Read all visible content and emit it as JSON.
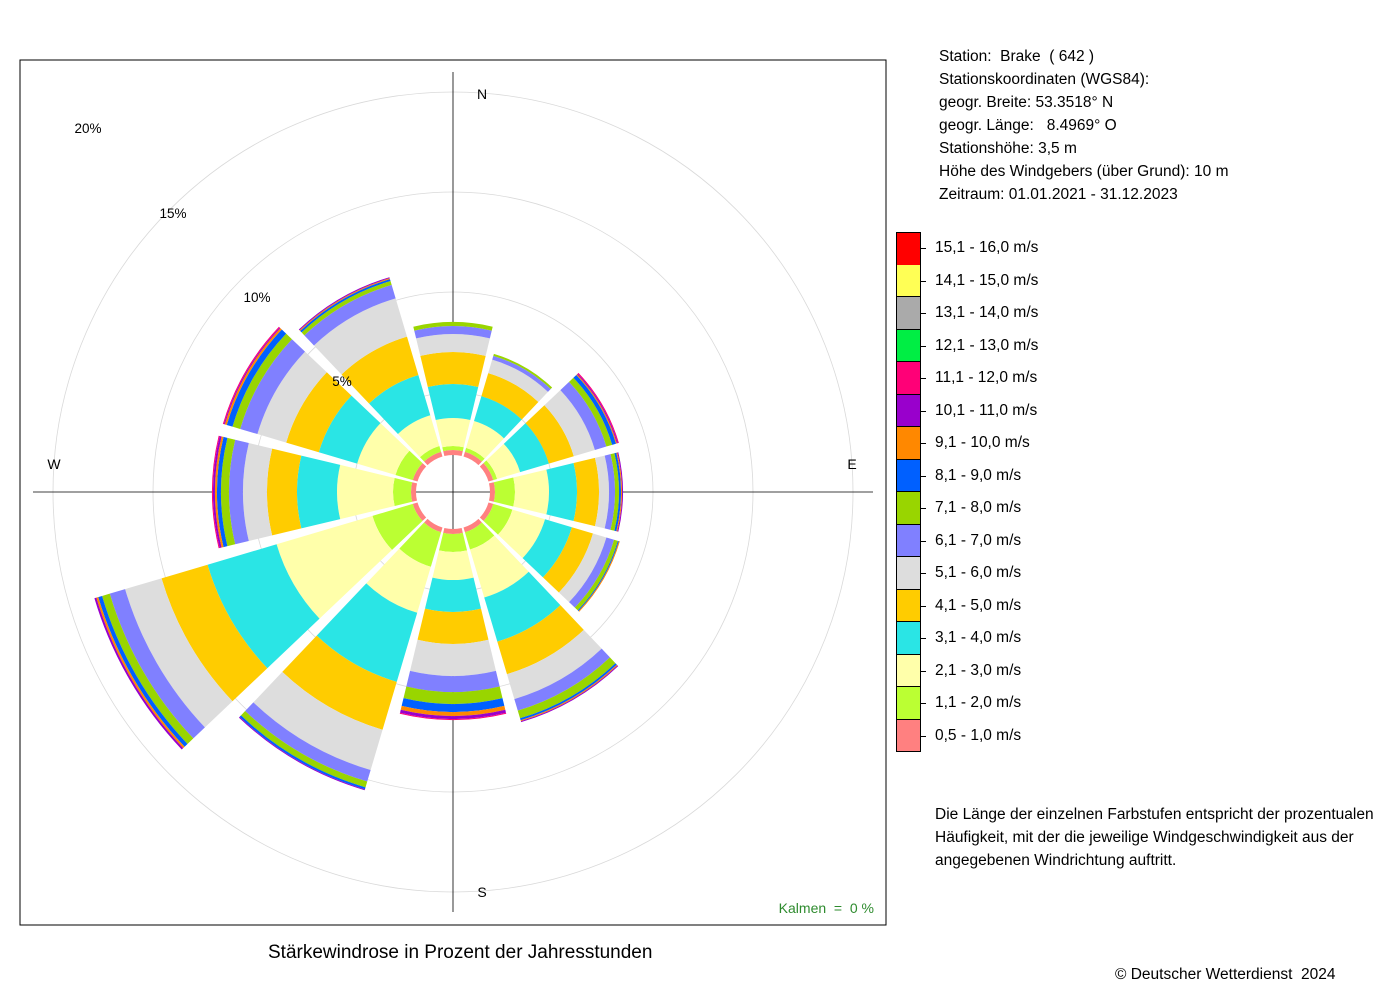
{
  "title": "Stärkewindrose in Prozent der Jahresstunden",
  "copyright": "© Deutscher Wetterdienst  2024",
  "station_info": [
    "Station:  Brake  ( 642 )",
    "Stationskoordinaten (WGS84):",
    "geogr. Breite: 53.3518° N",
    "geogr. Länge:   8.4969° O",
    "Stationshöhe: 3,5 m",
    "Höhe des Windgebers (über Grund): 10 m",
    "Zeitraum: 01.01.2021 - 31.12.2023"
  ],
  "note": "Die Länge der einzelnen Farbstufen entspricht der prozentualen Häufigkeit, mit der die jeweilige Windgeschwindigkeit aus der angegebenen Windrichtung auftritt.",
  "calm_label": "Kalmen  =  0 %",
  "chart_data": {
    "type": "wind-rose",
    "directions": [
      "N",
      "30°",
      "60°",
      "E",
      "120°",
      "150°",
      "S",
      "210°",
      "240°",
      "W",
      "300°",
      "330°"
    ],
    "compass_labels": [
      "N",
      "E",
      "S",
      "W"
    ],
    "ring_labels": [
      "5%",
      "10%",
      "15%",
      "20%"
    ],
    "rings": [
      5,
      10,
      15,
      20
    ],
    "rmax": 20,
    "speed_classes": [
      {
        "label": "0,5 - 1,0 m/s",
        "color": "#ff8080"
      },
      {
        "label": "1,1 - 2,0 m/s",
        "color": "#bbff33"
      },
      {
        "label": "2,1 - 3,0 m/s",
        "color": "#ffffaa"
      },
      {
        "label": "3,1 - 4,0 m/s",
        "color": "#2ae5e5"
      },
      {
        "label": "4,1 - 5,0 m/s",
        "color": "#ffcc00"
      },
      {
        "label": "5,1 - 6,0 m/s",
        "color": "#dddddd"
      },
      {
        "label": "6,1 - 7,0 m/s",
        "color": "#8080ff"
      },
      {
        "label": "7,1 - 8,0 m/s",
        "color": "#99d500"
      },
      {
        "label": "8,1 - 9,0 m/s",
        "color": "#0060ff"
      },
      {
        "label": "9,1 - 10,0 m/s",
        "color": "#ff8800"
      },
      {
        "label": "10,1 - 11,0 m/s",
        "color": "#9900cc"
      },
      {
        "label": "11,1 - 12,0 m/s",
        "color": "#ff0077"
      },
      {
        "label": "12,1 - 13,0 m/s",
        "color": "#00ee44"
      },
      {
        "label": "13,1 - 14,0 m/s",
        "color": "#aaaaaa"
      },
      {
        "label": "14,1 - 15,0 m/s",
        "color": "#ffff55"
      },
      {
        "label": "15,1 - 16,0 m/s",
        "color": "#ff0000"
      }
    ],
    "cumulative_percent": [
      [
        2.1,
        2.3,
        3.7,
        5.4,
        7.0,
        7.9,
        8.3,
        8.5,
        8.5,
        8.5,
        8.5,
        8.5,
        8.5,
        8.5,
        8.5,
        8.5
      ],
      [
        2.1,
        2.3,
        3.7,
        5.0,
        6.2,
        6.9,
        7.1,
        7.2,
        7.2,
        7.2,
        7.2,
        7.2,
        7.2,
        7.2,
        7.2,
        7.2
      ],
      [
        2.1,
        2.3,
        3.5,
        5.0,
        6.3,
        7.4,
        8.0,
        8.3,
        8.5,
        8.55,
        8.6,
        8.65,
        8.65,
        8.65,
        8.65,
        8.65
      ],
      [
        2.1,
        3.1,
        4.8,
        6.2,
        7.3,
        7.8,
        8.1,
        8.3,
        8.4,
        8.45,
        8.5,
        8.5,
        8.5,
        8.5,
        8.5,
        8.5
      ],
      [
        2.1,
        3.1,
        4.8,
        6.2,
        7.3,
        8.0,
        8.4,
        8.6,
        8.65,
        8.7,
        8.7,
        8.7,
        8.7,
        8.7,
        8.7,
        8.7
      ],
      [
        2.1,
        3.0,
        5.5,
        7.8,
        9.5,
        10.8,
        11.4,
        11.8,
        11.9,
        11.95,
        12.0,
        12.0,
        12.0,
        12.0,
        12.0,
        12.0
      ],
      [
        2.1,
        3.0,
        4.4,
        6.0,
        7.6,
        9.2,
        10.0,
        10.6,
        11.0,
        11.2,
        11.35,
        11.4,
        11.4,
        11.4,
        11.4,
        11.4
      ],
      [
        2.1,
        3.9,
        6.3,
        9.9,
        12.4,
        14.5,
        15.1,
        15.4,
        15.5,
        15.5,
        15.55,
        15.55,
        15.55,
        15.55,
        15.55,
        15.55
      ],
      [
        2.1,
        4.2,
        9.2,
        12.8,
        15.2,
        17.1,
        17.9,
        18.3,
        18.5,
        18.6,
        18.7,
        18.7,
        18.7,
        18.7,
        18.7,
        18.7
      ],
      [
        2.1,
        3.0,
        5.8,
        7.8,
        9.3,
        10.5,
        11.2,
        11.6,
        11.8,
        11.9,
        12.0,
        12.05,
        12.05,
        12.05,
        12.05,
        12.05
      ],
      [
        2.1,
        3.0,
        5.0,
        7.0,
        8.7,
        10.2,
        11.1,
        11.5,
        11.8,
        11.9,
        11.95,
        12.0,
        12.0,
        12.0,
        12.0,
        12.0
      ],
      [
        2.1,
        2.4,
        4.0,
        6.1,
        8.1,
        10.1,
        10.8,
        11.0,
        11.1,
        11.15,
        11.2,
        11.2,
        11.2,
        11.2,
        11.2,
        11.2
      ]
    ],
    "calm_percent": 0
  }
}
